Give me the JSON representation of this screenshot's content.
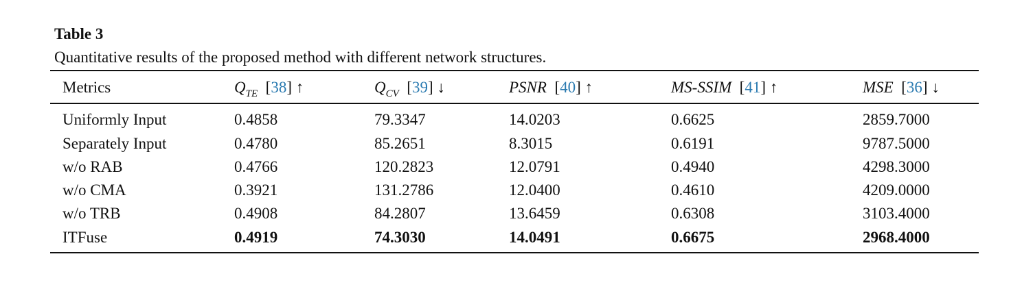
{
  "table_label": "Table 3",
  "caption": "Quantitative results of the proposed method with different network structures.",
  "table": {
    "header": [
      {
        "text": "Metrics"
      },
      {
        "symbol": "Q",
        "subscript": "TE",
        "cite": "[38]",
        "arrow": "↑"
      },
      {
        "symbol": "Q",
        "subscript": "CV",
        "cite": "[39]",
        "arrow": "↓"
      },
      {
        "symbol": "PSNR",
        "cite": "[40]",
        "arrow": "↑"
      },
      {
        "symbol": "MS-SSIM",
        "cite": "[41]",
        "arrow": "↑"
      },
      {
        "symbol": "MSE",
        "cite": "[36]",
        "arrow": "↓"
      }
    ],
    "rows": [
      [
        "Uniformly Input",
        "0.4858",
        "79.3347",
        "14.0203",
        "0.6625",
        "2859.7000"
      ],
      [
        "Separately Input",
        "0.4780",
        "85.2651",
        "8.3015",
        "0.6191",
        "9787.5000"
      ],
      [
        "w/o RAB",
        "0.4766",
        "120.2823",
        "12.0791",
        "0.4940",
        "4298.3000"
      ],
      [
        "w/o CMA",
        "0.3921",
        "131.2786",
        "12.0400",
        "0.4610",
        "4209.0000"
      ],
      [
        "w/o TRB",
        "0.4908",
        "84.2807",
        "13.6459",
        "0.6308",
        "3103.4000"
      ],
      [
        "ITFuse",
        "0.4919",
        "74.3030",
        "14.0491",
        "0.6675",
        "2968.4000"
      ]
    ],
    "bold_row": 5
  }
}
